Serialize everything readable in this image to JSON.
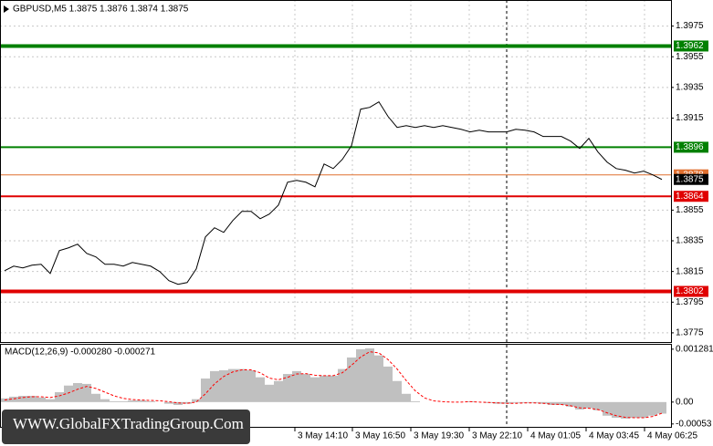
{
  "chart_data": [
    {
      "type": "line",
      "title": "GBPUSD,M5 1.3875 1.3876 1.3874 1.3875",
      "color": "#000000",
      "values": [
        1.38155,
        1.38185,
        1.38173,
        1.38191,
        1.38197,
        1.38137,
        1.38286,
        1.38304,
        1.38328,
        1.38268,
        1.38245,
        1.38197,
        1.38197,
        1.38185,
        1.38209,
        1.38197,
        1.38185,
        1.38149,
        1.3809,
        1.38066,
        1.38078,
        1.38167,
        1.38375,
        1.38435,
        1.38405,
        1.38482,
        1.38542,
        1.38542,
        1.38494,
        1.38524,
        1.38583,
        1.38732,
        1.38744,
        1.38732,
        1.38702,
        1.38851,
        1.38821,
        1.38881,
        1.3897,
        1.39208,
        1.3922,
        1.39256,
        1.39161,
        1.39089,
        1.39101,
        1.39089,
        1.39101,
        1.39089,
        1.39101,
        1.39089,
        1.39077,
        1.3906,
        1.39071,
        1.3906,
        1.3906,
        1.3906,
        1.39077,
        1.39071,
        1.3906,
        1.3903,
        1.3903,
        1.3903,
        1.39,
        1.38952,
        1.39018,
        1.38929,
        1.38863,
        1.38821,
        1.3881,
        1.38792,
        1.38804,
        1.3878,
        1.3875
      ],
      "xlim": [
        -0.5,
        73
      ],
      "xticks": [
        {
          "value": 31.8,
          "label": "3 May 14:10"
        },
        {
          "value": 38.1,
          "label": "3 May 16:50"
        },
        {
          "value": 44.5,
          "label": "3 May 19:30"
        },
        {
          "value": 50.9,
          "label": "3 May 22:10"
        },
        {
          "value": 57.3,
          "label": "4 May 01:05"
        },
        {
          "value": 63.7,
          "label": "4 May 03:45"
        },
        {
          "value": 70.1,
          "label": "4 May 06:25"
        }
      ],
      "separator_x": 55,
      "ylim": [
        1.3769,
        1.3992
      ],
      "yticks": [
        1.3975,
        1.3955,
        1.3935,
        1.3915,
        1.3855,
        1.3835,
        1.3815,
        1.3795,
        1.3775
      ],
      "grid": true,
      "levels": [
        {
          "value": 1.3962,
          "color": "#008000",
          "width": 4
        },
        {
          "value": 1.3896,
          "color": "#008000",
          "width": 2
        },
        {
          "value": 1.3878,
          "color": "#e07030",
          "width": 1
        },
        {
          "value": 1.3864,
          "color": "#e00000",
          "width": 2
        },
        {
          "value": 1.3802,
          "color": "#e00000",
          "width": 4
        }
      ],
      "last_value": 1.3875
    },
    {
      "type": "macd",
      "title": "MACD(12,26,9) -0.000280 -0.000271",
      "histogram": {
        "color": "#c0c0c0",
        "values": [
          9e-05,
          0.00013,
          0.00015,
          0.00015,
          0.00011,
          7e-05,
          0.00024,
          0.0004,
          0.00046,
          0.00044,
          0.0002,
          7e-05,
          2e-05,
          2e-05,
          4e-05,
          4e-05,
          2e-05,
          0,
          -4e-05,
          -7e-05,
          -4e-05,
          7e-05,
          0.00057,
          0.00075,
          0.00077,
          0.0008,
          0.0008,
          0.00077,
          0.0006,
          0.00042,
          0.00051,
          0.00068,
          0.00075,
          0.00068,
          0.0006,
          0.00064,
          0.00064,
          0.0008,
          0.00108,
          0.00128,
          0.0013,
          0.00113,
          0.00086,
          0.00051,
          0.0002,
          2e-05,
          0,
          0,
          0,
          0,
          0,
          2e-05,
          0,
          -2e-05,
          -4e-05,
          -4e-05,
          -2e-05,
          -2e-05,
          -2e-05,
          -4e-05,
          -7e-05,
          -7e-05,
          -0.00011,
          -0.00018,
          -0.00015,
          -0.0002,
          -0.00033,
          -0.00038,
          -0.0004,
          -0.00038,
          -0.00038,
          -0.00033,
          -0.00028
        ]
      },
      "signal": {
        "color": "#ff0000",
        "values": [
          5e-05,
          8e-05,
          0.00011,
          0.00013,
          0.00013,
          0.00011,
          0.00015,
          0.00022,
          0.00031,
          0.00038,
          0.00033,
          0.00024,
          0.00015,
          9e-05,
          6e-05,
          5e-05,
          4e-05,
          3e-05,
          1e-05,
          -2e-05,
          -3e-05,
          0,
          0.0002,
          0.00044,
          0.00062,
          0.00073,
          0.00078,
          0.00078,
          0.00071,
          0.00058,
          0.00054,
          0.0006,
          0.00068,
          0.00069,
          0.00065,
          0.00064,
          0.00064,
          0.00071,
          0.00089,
          0.00109,
          0.00122,
          0.00119,
          0.00103,
          0.0008,
          0.00052,
          0.00027,
          0.0001,
          3e-05,
          1e-05,
          0,
          0,
          1e-05,
          0,
          -1e-05,
          -2e-05,
          -3e-05,
          -3e-05,
          -2e-05,
          -2e-05,
          -3e-05,
          -5e-05,
          -6e-05,
          -9e-05,
          -0.00014,
          -0.00015,
          -0.00018,
          -0.00026,
          -0.00033,
          -0.00037,
          -0.00038,
          -0.00038,
          -0.00035,
          -0.000271
        ]
      },
      "ylim": [
        -0.0006,
        0.00141
      ],
      "yticks": [
        0.001281,
        {
          "value": 0,
          "label": "0.00"
        },
        -0.00053
      ]
    }
  ],
  "watermark": "WWW.GlobalFXTradingGroup.Com"
}
